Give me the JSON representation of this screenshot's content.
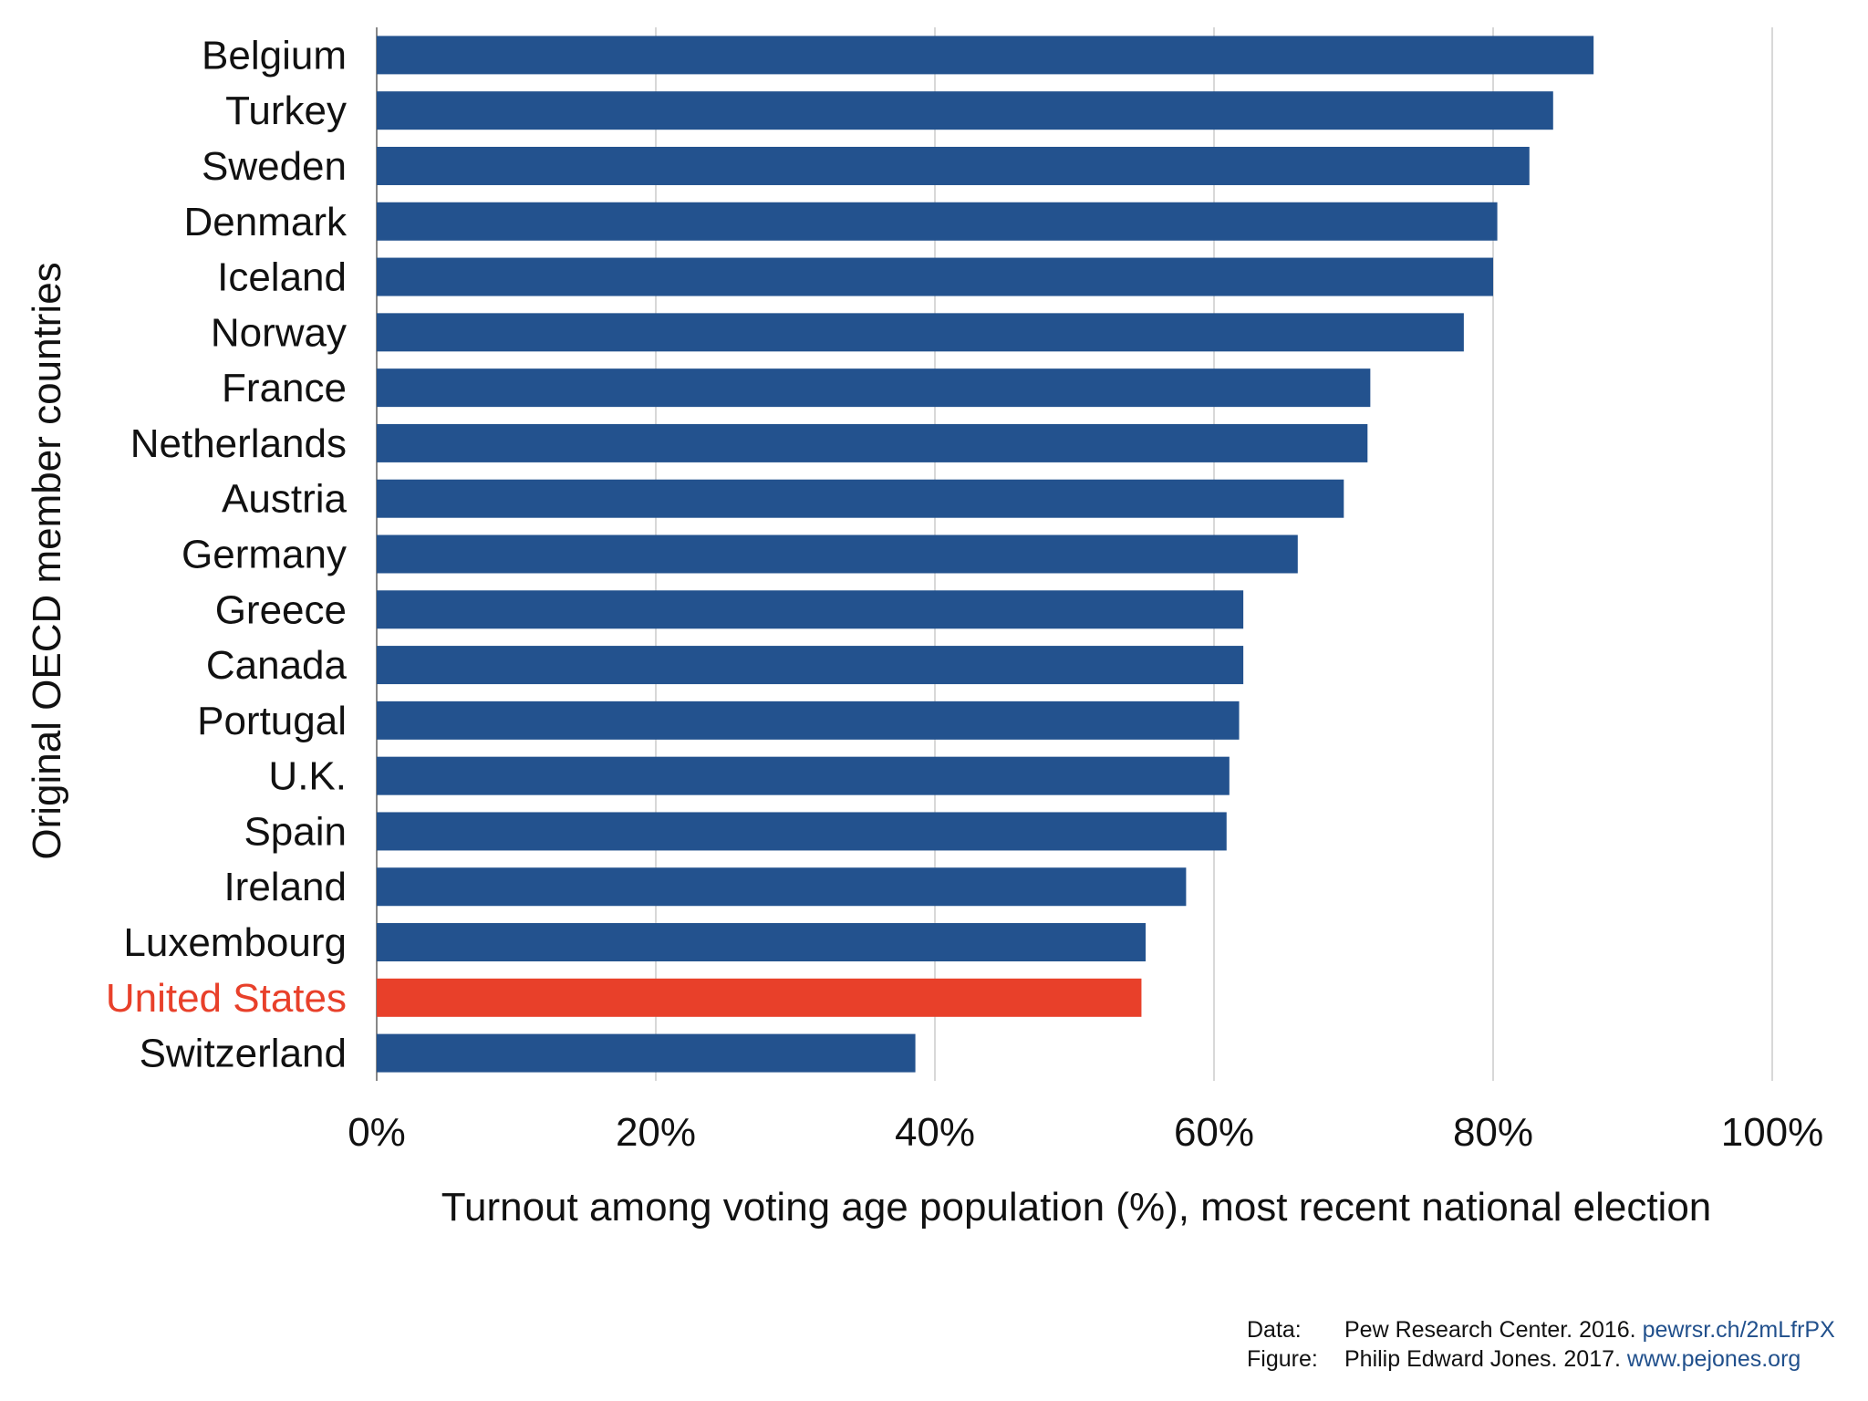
{
  "colors": {
    "bar": "#23528e",
    "highlight": "#e8402a",
    "grid": "#cccccc",
    "text": "#111111",
    "link": "#21508c"
  },
  "chart_data": {
    "type": "bar",
    "orientation": "horizontal",
    "categories": [
      "Belgium",
      "Turkey",
      "Sweden",
      "Denmark",
      "Iceland",
      "Norway",
      "France",
      "Netherlands",
      "Austria",
      "Germany",
      "Greece",
      "Canada",
      "Portugal",
      "U.K.",
      "Spain",
      "Ireland",
      "Luxembourg",
      "United States",
      "Switzerland"
    ],
    "values": [
      87.2,
      84.3,
      82.6,
      80.3,
      80.0,
      77.9,
      71.2,
      71.0,
      69.3,
      66.0,
      62.1,
      62.1,
      61.8,
      61.1,
      60.9,
      58.0,
      55.1,
      54.8,
      38.6
    ],
    "highlight": "United States",
    "xlim": [
      0,
      100
    ],
    "xticks": [
      "0%",
      "20%",
      "40%",
      "60%",
      "80%",
      "100%"
    ],
    "xlabel": "Turnout among voting age population (%), most recent national election",
    "ylabel": "Original OECD member countries",
    "grid": true
  },
  "footer": {
    "data_key": "Data:",
    "data_text": "Pew Research Center. 2016.",
    "data_link": "pewrsr.ch/2mLfrPX",
    "figure_key": "Figure:",
    "figure_text": "Philip Edward Jones. 2017.",
    "figure_link": "www.pejones.org"
  }
}
